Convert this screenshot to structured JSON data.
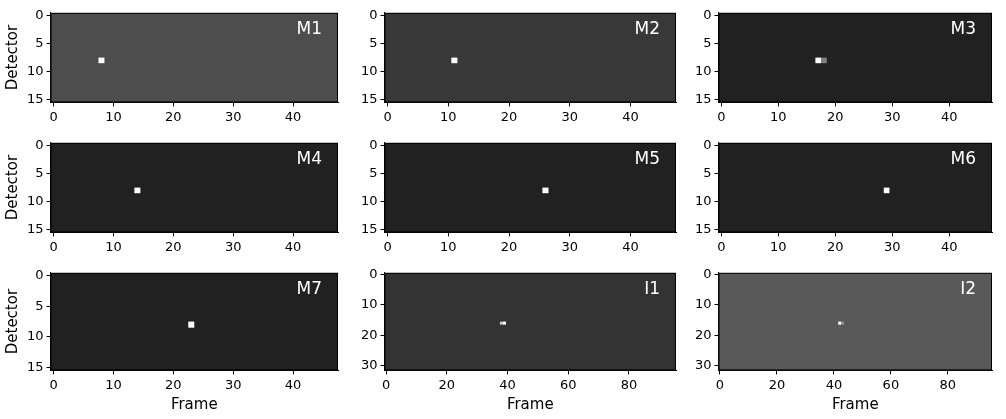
{
  "chart_data": [
    {
      "type": "heatmap",
      "title": "M1",
      "y_label": "Detector",
      "xlim": [
        -0.5,
        47.5
      ],
      "ylim": [
        15.5,
        -0.5
      ],
      "xticks": [
        0,
        10,
        20,
        30,
        40
      ],
      "yticks": [
        0,
        5,
        10,
        15
      ],
      "zlim": [
        0,
        1
      ],
      "background": 0.3,
      "spots": [
        {
          "frame": 8,
          "detector": 8,
          "value": 1
        }
      ]
    },
    {
      "type": "heatmap",
      "title": "M2",
      "xlim": [
        -0.5,
        47.5
      ],
      "ylim": [
        15.5,
        -0.5
      ],
      "xticks": [
        0,
        10,
        20,
        30,
        40
      ],
      "yticks": [
        0,
        5,
        10,
        15
      ],
      "zlim": [
        0,
        1
      ],
      "background": 0.22,
      "spots": [
        {
          "frame": 11,
          "detector": 8,
          "value": 1
        }
      ]
    },
    {
      "type": "heatmap",
      "title": "M3",
      "xlim": [
        -0.5,
        47.5
      ],
      "ylim": [
        15.5,
        -0.5
      ],
      "xticks": [
        0,
        10,
        20,
        30,
        40
      ],
      "yticks": [
        0,
        5,
        10,
        15
      ],
      "zlim": [
        0,
        1
      ],
      "background": 0.13,
      "spots": [
        {
          "frame": 17,
          "detector": 8,
          "value": 1
        },
        {
          "frame": 18,
          "detector": 8,
          "value": 0.5
        }
      ]
    },
    {
      "type": "heatmap",
      "title": "M4",
      "y_label": "Detector",
      "xlim": [
        -0.5,
        47.5
      ],
      "ylim": [
        15.5,
        -0.5
      ],
      "xticks": [
        0,
        10,
        20,
        30,
        40
      ],
      "yticks": [
        0,
        5,
        10,
        15
      ],
      "zlim": [
        0,
        1
      ],
      "background": 0.13,
      "spots": [
        {
          "frame": 14,
          "detector": 8,
          "value": 1
        }
      ]
    },
    {
      "type": "heatmap",
      "title": "M5",
      "xlim": [
        -0.5,
        47.5
      ],
      "ylim": [
        15.5,
        -0.5
      ],
      "xticks": [
        0,
        10,
        20,
        30,
        40
      ],
      "yticks": [
        0,
        5,
        10,
        15
      ],
      "zlim": [
        0,
        1
      ],
      "background": 0.13,
      "spots": [
        {
          "frame": 26,
          "detector": 8,
          "value": 1
        }
      ]
    },
    {
      "type": "heatmap",
      "title": "M6",
      "xlim": [
        -0.5,
        47.5
      ],
      "ylim": [
        15.5,
        -0.5
      ],
      "xticks": [
        0,
        10,
        20,
        30,
        40
      ],
      "yticks": [
        0,
        5,
        10,
        15
      ],
      "zlim": [
        0,
        1
      ],
      "background": 0.13,
      "spots": [
        {
          "frame": 29,
          "detector": 8,
          "value": 1
        }
      ]
    },
    {
      "type": "heatmap",
      "title": "M7",
      "x_label": "Frame",
      "y_label": "Detector",
      "xlim": [
        -0.5,
        47.5
      ],
      "ylim": [
        15.5,
        -0.5
      ],
      "xticks": [
        0,
        10,
        20,
        30,
        40
      ],
      "yticks": [
        0,
        5,
        10,
        15
      ],
      "zlim": [
        0,
        1
      ],
      "background": 0.13,
      "spots": [
        {
          "frame": 23,
          "detector": 8,
          "value": 1
        }
      ]
    },
    {
      "type": "heatmap",
      "title": "I1",
      "x_label": "Frame",
      "xlim": [
        -0.5,
        95.5
      ],
      "ylim": [
        31.5,
        -0.5
      ],
      "xticks": [
        0,
        20,
        40,
        60,
        80
      ],
      "yticks": [
        0,
        10,
        20,
        30
      ],
      "zlim": [
        0,
        1
      ],
      "background": 0.2,
      "spots": [
        {
          "frame": 38,
          "detector": 16,
          "value": 0.8
        },
        {
          "frame": 39,
          "detector": 16,
          "value": 1
        }
      ]
    },
    {
      "type": "heatmap",
      "title": "I2",
      "x_label": "Frame",
      "xlim": [
        -0.5,
        95.5
      ],
      "ylim": [
        31.5,
        -0.5
      ],
      "xticks": [
        0,
        20,
        40,
        60,
        80
      ],
      "yticks": [
        0,
        10,
        20,
        30
      ],
      "zlim": [
        0,
        1
      ],
      "background": 0.35,
      "spots": [
        {
          "frame": 42,
          "detector": 16,
          "value": 1
        },
        {
          "frame": 43,
          "detector": 16,
          "value": 0.6
        }
      ]
    }
  ]
}
